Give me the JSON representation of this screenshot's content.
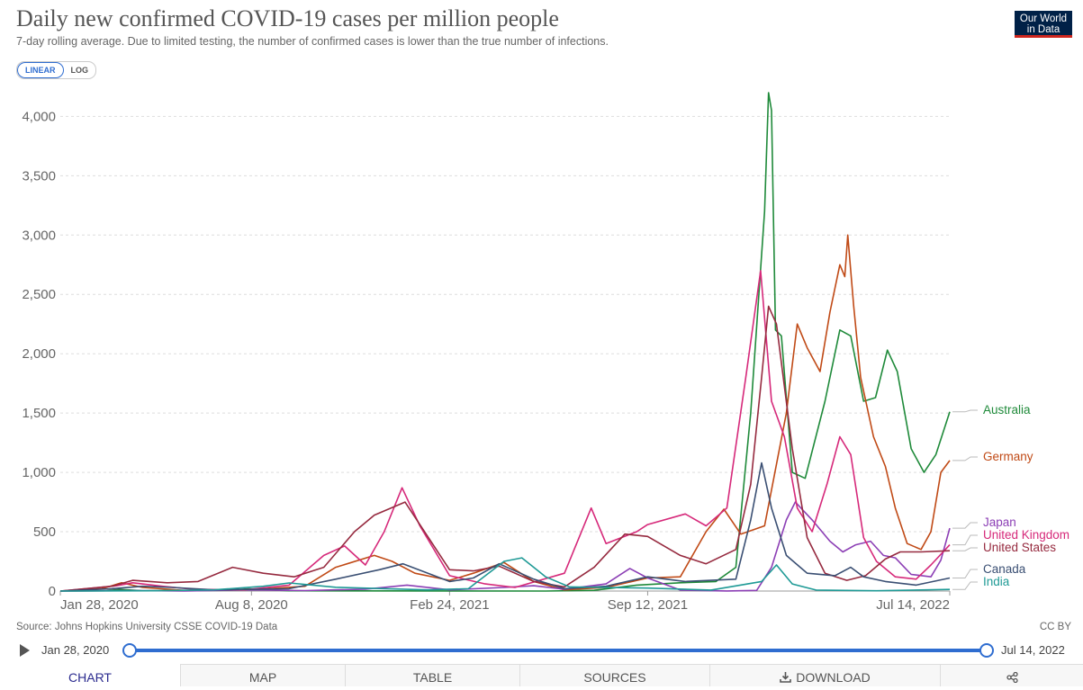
{
  "header": {
    "title": "Daily new confirmed COVID-19 cases per million people",
    "subtitle": "7-day rolling average. Due to limited testing, the number of confirmed cases is lower than the true number of infections.",
    "logo_line1": "Our World",
    "logo_line2": "in Data"
  },
  "scale_toggle": {
    "linear": "LINEAR",
    "log": "LOG",
    "selected": "LINEAR"
  },
  "footer": {
    "source": "Source: Johns Hopkins University CSSE COVID-19 Data",
    "license": "CC BY"
  },
  "timeline": {
    "start": "Jan 28, 2020",
    "end": "Jul 14, 2022"
  },
  "tabs": [
    {
      "label": "CHART",
      "active": true
    },
    {
      "label": "MAP",
      "active": false
    },
    {
      "label": "TABLE",
      "active": false
    },
    {
      "label": "SOURCES",
      "active": false
    },
    {
      "label": "DOWNLOAD",
      "active": false
    },
    {
      "label": "",
      "active": false
    }
  ],
  "chart_data": {
    "type": "line",
    "title": "Daily new confirmed COVID-19 cases per million people",
    "ylim": [
      0,
      4200
    ],
    "xlim": [
      "2020-01-28",
      "2022-07-14"
    ],
    "yticks": [
      0,
      500,
      1000,
      1500,
      2000,
      2500,
      3000,
      3500,
      4000
    ],
    "ytick_labels": [
      "0",
      "500",
      "1,000",
      "1,500",
      "2,000",
      "2,500",
      "3,000",
      "3,500",
      "4,000"
    ],
    "xticks": [
      "2020-01-28",
      "2020-08-08",
      "2021-02-24",
      "2021-09-12",
      "2022-07-14"
    ],
    "xtick_labels": [
      "Jan 28, 2020",
      "Aug 8, 2020",
      "Feb 24, 2021",
      "Sep 12, 2021",
      "Jul 14, 2022"
    ],
    "grid": "horizontal dashed",
    "legend": "right, labels at line ends",
    "series": [
      {
        "name": "Australia",
        "color": "#1f8a3a",
        "points": [
          [
            "2020-01-28",
            0
          ],
          [
            "2020-03-15",
            2
          ],
          [
            "2020-03-28",
            14
          ],
          [
            "2020-04-20",
            2
          ],
          [
            "2020-07-15",
            6
          ],
          [
            "2020-08-05",
            18
          ],
          [
            "2020-09-15",
            2
          ],
          [
            "2021-06-01",
            0
          ],
          [
            "2021-07-20",
            6
          ],
          [
            "2021-09-01",
            50
          ],
          [
            "2021-10-15",
            70
          ],
          [
            "2021-11-20",
            80
          ],
          [
            "2021-12-10",
            200
          ],
          [
            "2021-12-25",
            1500
          ],
          [
            "2022-01-08",
            3200
          ],
          [
            "2022-01-12",
            4200
          ],
          [
            "2022-01-15",
            4050
          ],
          [
            "2022-01-19",
            2200
          ],
          [
            "2022-01-25",
            2150
          ],
          [
            "2022-02-05",
            1000
          ],
          [
            "2022-02-18",
            950
          ],
          [
            "2022-03-10",
            1600
          ],
          [
            "2022-03-25",
            2200
          ],
          [
            "2022-04-05",
            2150
          ],
          [
            "2022-04-18",
            1600
          ],
          [
            "2022-04-30",
            1630
          ],
          [
            "2022-05-12",
            2030
          ],
          [
            "2022-05-22",
            1850
          ],
          [
            "2022-06-05",
            1200
          ],
          [
            "2022-06-18",
            1000
          ],
          [
            "2022-06-30",
            1150
          ],
          [
            "2022-07-14",
            1510
          ]
        ]
      },
      {
        "name": "Germany",
        "color": "#c04a16",
        "points": [
          [
            "2020-01-28",
            0
          ],
          [
            "2020-03-10",
            20
          ],
          [
            "2020-03-30",
            70
          ],
          [
            "2020-04-20",
            30
          ],
          [
            "2020-06-01",
            5
          ],
          [
            "2020-08-15",
            15
          ],
          [
            "2020-10-01",
            40
          ],
          [
            "2020-11-01",
            200
          ],
          [
            "2020-12-10",
            300
          ],
          [
            "2020-12-28",
            250
          ],
          [
            "2021-01-20",
            150
          ],
          [
            "2021-02-24",
            90
          ],
          [
            "2021-03-20",
            150
          ],
          [
            "2021-04-20",
            240
          ],
          [
            "2021-05-20",
            80
          ],
          [
            "2021-06-20",
            10
          ],
          [
            "2021-08-01",
            30
          ],
          [
            "2021-09-12",
            110
          ],
          [
            "2021-10-15",
            120
          ],
          [
            "2021-11-10",
            500
          ],
          [
            "2021-11-28",
            690
          ],
          [
            "2021-12-15",
            480
          ],
          [
            "2022-01-08",
            550
          ],
          [
            "2022-01-30",
            1500
          ],
          [
            "2022-02-10",
            2250
          ],
          [
            "2022-02-20",
            2050
          ],
          [
            "2022-03-05",
            1850
          ],
          [
            "2022-03-15",
            2350
          ],
          [
            "2022-03-25",
            2750
          ],
          [
            "2022-03-30",
            2650
          ],
          [
            "2022-04-02",
            3000
          ],
          [
            "2022-04-08",
            2400
          ],
          [
            "2022-04-15",
            1800
          ],
          [
            "2022-04-28",
            1300
          ],
          [
            "2022-05-10",
            1050
          ],
          [
            "2022-05-20",
            700
          ],
          [
            "2022-06-01",
            400
          ],
          [
            "2022-06-15",
            350
          ],
          [
            "2022-06-25",
            500
          ],
          [
            "2022-07-05",
            1000
          ],
          [
            "2022-07-14",
            1100
          ]
        ]
      },
      {
        "name": "Japan",
        "color": "#8c3fb5",
        "points": [
          [
            "2020-01-28",
            0
          ],
          [
            "2020-04-15",
            4
          ],
          [
            "2020-06-01",
            1
          ],
          [
            "2020-08-05",
            10
          ],
          [
            "2020-10-01",
            4
          ],
          [
            "2020-12-01",
            16
          ],
          [
            "2021-01-12",
            50
          ],
          [
            "2021-02-24",
            10
          ],
          [
            "2021-04-20",
            30
          ],
          [
            "2021-05-20",
            45
          ],
          [
            "2021-06-20",
            15
          ],
          [
            "2021-08-01",
            60
          ],
          [
            "2021-08-25",
            190
          ],
          [
            "2021-09-12",
            110
          ],
          [
            "2021-10-15",
            8
          ],
          [
            "2021-12-01",
            1
          ],
          [
            "2021-12-31",
            5
          ],
          [
            "2022-01-15",
            200
          ],
          [
            "2022-01-30",
            600
          ],
          [
            "2022-02-08",
            750
          ],
          [
            "2022-02-25",
            600
          ],
          [
            "2022-03-15",
            420
          ],
          [
            "2022-03-28",
            330
          ],
          [
            "2022-04-10",
            390
          ],
          [
            "2022-04-25",
            420
          ],
          [
            "2022-05-08",
            300
          ],
          [
            "2022-05-20",
            280
          ],
          [
            "2022-06-05",
            140
          ],
          [
            "2022-06-25",
            120
          ],
          [
            "2022-07-05",
            260
          ],
          [
            "2022-07-14",
            530
          ]
        ]
      },
      {
        "name": "United Kingdom",
        "color": "#d6297a",
        "points": [
          [
            "2020-01-28",
            0
          ],
          [
            "2020-03-25",
            45
          ],
          [
            "2020-04-10",
            70
          ],
          [
            "2020-05-10",
            40
          ],
          [
            "2020-06-10",
            15
          ],
          [
            "2020-08-01",
            10
          ],
          [
            "2020-09-15",
            50
          ],
          [
            "2020-10-20",
            300
          ],
          [
            "2020-11-10",
            380
          ],
          [
            "2020-12-01",
            220
          ],
          [
            "2020-12-20",
            500
          ],
          [
            "2021-01-07",
            870
          ],
          [
            "2021-01-25",
            550
          ],
          [
            "2021-02-24",
            130
          ],
          [
            "2021-04-01",
            60
          ],
          [
            "2021-05-01",
            30
          ],
          [
            "2021-06-20",
            150
          ],
          [
            "2021-07-17",
            700
          ],
          [
            "2021-08-01",
            400
          ],
          [
            "2021-09-01",
            500
          ],
          [
            "2021-09-12",
            560
          ],
          [
            "2021-10-20",
            650
          ],
          [
            "2021-11-10",
            550
          ],
          [
            "2021-12-01",
            700
          ],
          [
            "2021-12-20",
            1800
          ],
          [
            "2022-01-04",
            2700
          ],
          [
            "2022-01-15",
            1600
          ],
          [
            "2022-01-28",
            1300
          ],
          [
            "2022-02-10",
            700
          ],
          [
            "2022-02-25",
            500
          ],
          [
            "2022-03-12",
            900
          ],
          [
            "2022-03-25",
            1300
          ],
          [
            "2022-04-05",
            1150
          ],
          [
            "2022-04-18",
            450
          ],
          [
            "2022-05-01",
            250
          ],
          [
            "2022-05-20",
            120
          ],
          [
            "2022-06-10",
            100
          ],
          [
            "2022-06-25",
            220
          ],
          [
            "2022-07-14",
            390
          ]
        ]
      },
      {
        "name": "United States",
        "color": "#962a3f",
        "points": [
          [
            "2020-01-28",
            0
          ],
          [
            "2020-03-20",
            40
          ],
          [
            "2020-04-10",
            90
          ],
          [
            "2020-05-15",
            70
          ],
          [
            "2020-06-15",
            80
          ],
          [
            "2020-07-20",
            200
          ],
          [
            "2020-08-20",
            150
          ],
          [
            "2020-09-20",
            120
          ],
          [
            "2020-10-20",
            200
          ],
          [
            "2020-11-20",
            500
          ],
          [
            "2020-12-10",
            640
          ],
          [
            "2021-01-10",
            750
          ],
          [
            "2021-02-24",
            180
          ],
          [
            "2021-03-20",
            170
          ],
          [
            "2021-04-15",
            210
          ],
          [
            "2021-05-20",
            80
          ],
          [
            "2021-06-20",
            35
          ],
          [
            "2021-07-20",
            200
          ],
          [
            "2021-08-20",
            480
          ],
          [
            "2021-09-12",
            460
          ],
          [
            "2021-10-15",
            300
          ],
          [
            "2021-11-10",
            230
          ],
          [
            "2021-12-10",
            350
          ],
          [
            "2021-12-25",
            900
          ],
          [
            "2022-01-05",
            1800
          ],
          [
            "2022-01-12",
            2400
          ],
          [
            "2022-01-20",
            2250
          ],
          [
            "2022-02-05",
            1200
          ],
          [
            "2022-02-20",
            450
          ],
          [
            "2022-03-10",
            150
          ],
          [
            "2022-04-01",
            90
          ],
          [
            "2022-04-20",
            130
          ],
          [
            "2022-05-10",
            270
          ],
          [
            "2022-05-25",
            330
          ],
          [
            "2022-06-15",
            330
          ],
          [
            "2022-07-14",
            340
          ]
        ]
      },
      {
        "name": "Canada",
        "color": "#3a4f73",
        "points": [
          [
            "2020-01-28",
            0
          ],
          [
            "2020-03-20",
            20
          ],
          [
            "2020-04-20",
            40
          ],
          [
            "2020-05-20",
            30
          ],
          [
            "2020-07-01",
            10
          ],
          [
            "2020-09-15",
            20
          ],
          [
            "2020-11-01",
            100
          ],
          [
            "2020-12-15",
            180
          ],
          [
            "2021-01-08",
            230
          ],
          [
            "2021-02-24",
            80
          ],
          [
            "2021-03-20",
            110
          ],
          [
            "2021-04-15",
            230
          ],
          [
            "2021-05-20",
            100
          ],
          [
            "2021-06-20",
            20
          ],
          [
            "2021-08-01",
            40
          ],
          [
            "2021-09-12",
            120
          ],
          [
            "2021-10-20",
            80
          ],
          [
            "2021-12-10",
            100
          ],
          [
            "2021-12-25",
            600
          ],
          [
            "2022-01-05",
            1080
          ],
          [
            "2022-01-15",
            700
          ],
          [
            "2022-01-30",
            300
          ],
          [
            "2022-02-20",
            150
          ],
          [
            "2022-03-20",
            130
          ],
          [
            "2022-04-05",
            200
          ],
          [
            "2022-04-18",
            120
          ],
          [
            "2022-05-10",
            80
          ],
          [
            "2022-06-10",
            50
          ],
          [
            "2022-07-14",
            110
          ]
        ]
      },
      {
        "name": "India",
        "color": "#1f9a96",
        "points": [
          [
            "2020-01-28",
            0
          ],
          [
            "2020-05-01",
            2
          ],
          [
            "2020-07-01",
            10
          ],
          [
            "2020-08-20",
            40
          ],
          [
            "2020-09-15",
            68
          ],
          [
            "2020-11-01",
            32
          ],
          [
            "2021-02-01",
            10
          ],
          [
            "2021-03-15",
            20
          ],
          [
            "2021-04-20",
            250
          ],
          [
            "2021-05-08",
            280
          ],
          [
            "2021-06-01",
            120
          ],
          [
            "2021-06-25",
            35
          ],
          [
            "2021-09-12",
            25
          ],
          [
            "2021-11-15",
            8
          ],
          [
            "2022-01-05",
            80
          ],
          [
            "2022-01-20",
            220
          ],
          [
            "2022-02-05",
            60
          ],
          [
            "2022-03-01",
            8
          ],
          [
            "2022-05-01",
            2
          ],
          [
            "2022-07-14",
            14
          ]
        ]
      }
    ]
  }
}
